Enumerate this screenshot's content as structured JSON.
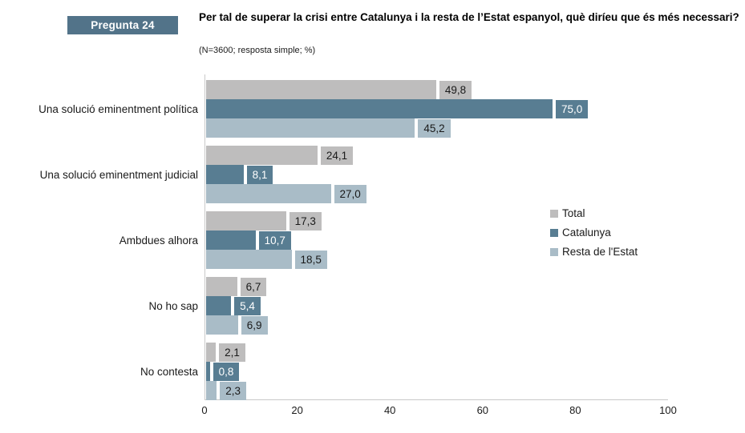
{
  "header": {
    "badge": "Pregunta 24",
    "title": "Per tal de superar la crisi entre Catalunya i la resta de l’Estat espanyol, què diríeu que és més necessari?",
    "subtitle": "(N=3600; resposta simple; %)"
  },
  "colors": {
    "badge_bg": "#527389",
    "total": "#bebdbd",
    "catalunya": "#587d92",
    "resta": "#a9bcc7",
    "axis": "#c9c9c9",
    "value_text_dark": "#1a1a1a",
    "value_text_light": "#ffffff"
  },
  "chart_data": {
    "type": "bar",
    "orientation": "horizontal",
    "title": "Per tal de superar la crisi entre Catalunya i la resta de l’Estat espanyol, què diríeu que és més necessari?",
    "subtitle": "(N=3600; resposta simple; %)",
    "categories": [
      "Una solució eminentment política",
      "Una solució eminentment judicial",
      "Ambdues alhora",
      "No ho sap",
      "No contesta"
    ],
    "series": [
      {
        "name": "Total",
        "color": "#bebdbd",
        "label_text_color": "#1a1a1a",
        "values": [
          49.8,
          24.1,
          17.3,
          6.7,
          2.1
        ],
        "value_labels": [
          "49,8",
          "24,1",
          "17,3",
          "6,7",
          "2,1"
        ]
      },
      {
        "name": "Catalunya",
        "color": "#587d92",
        "label_text_color": "#ffffff",
        "values": [
          75.0,
          8.1,
          10.7,
          5.4,
          0.8
        ],
        "value_labels": [
          "75,0",
          "8,1",
          "10,7",
          "5,4",
          "0,8"
        ]
      },
      {
        "name": "Resta de l'Estat",
        "color": "#a9bcc7",
        "label_text_color": "#1a1a1a",
        "values": [
          45.2,
          27.0,
          18.5,
          6.9,
          2.3
        ],
        "value_labels": [
          "45,2",
          "27,0",
          "18,5",
          "6,9",
          "2,3"
        ]
      }
    ],
    "xlim": [
      0,
      100
    ],
    "x_ticks": [
      "0",
      "20",
      "40",
      "60",
      "80",
      "100"
    ],
    "legend": {
      "position": "right-middle",
      "entries": [
        "Total",
        "Catalunya",
        "Resta de l'Estat"
      ]
    },
    "grid": false
  }
}
